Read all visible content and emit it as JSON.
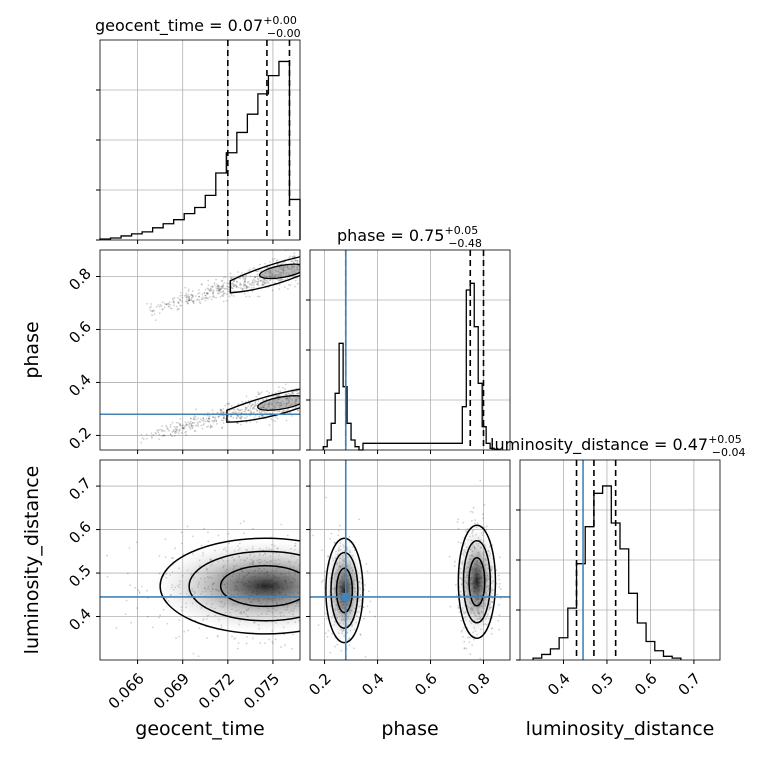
{
  "chart_data": {
    "type": "corner",
    "parameters": [
      "geocent_time",
      "phase",
      "luminosity_distance"
    ],
    "axis_labels": {
      "geocent_time": "geocent_time",
      "phase": "phase",
      "luminosity_distance": "luminosity_distance"
    },
    "ranges": {
      "geocent_time": [
        0.0635,
        0.0768
      ],
      "phase": [
        0.145,
        0.9
      ],
      "luminosity_distance": [
        0.3,
        0.76
      ]
    },
    "ticks": {
      "geocent_time": [
        0.066,
        0.069,
        0.072,
        0.075
      ],
      "phase": [
        0.2,
        0.4,
        0.6,
        0.8
      ],
      "luminosity_distance": [
        0.4,
        0.5,
        0.6,
        0.7
      ]
    },
    "tick_labels": {
      "geocent_time": [
        "0.066",
        "0.069",
        "0.072",
        "0.075"
      ],
      "phase": [
        "0.2",
        "0.4",
        "0.6",
        "0.8"
      ],
      "luminosity_distance": [
        "0.4",
        "0.5",
        "0.6",
        "0.7"
      ]
    },
    "injection": {
      "phase": 0.28,
      "luminosity_distance": 0.445
    },
    "titles": [
      {
        "param": "geocent_time",
        "prefix": "geocent_time = 0.07",
        "sup": "+0.00",
        "sub": "−0.00"
      },
      {
        "param": "phase",
        "prefix": "phase = 0.75",
        "sup": "+0.05",
        "sub": "−0.48"
      },
      {
        "param": "luminosity_distance",
        "prefix": "luminosity_distance = 0.47",
        "sup": "+0.05",
        "sub": "−0.04"
      }
    ],
    "quantiles": {
      "geocent_time": [
        0.072,
        0.0746,
        0.0761
      ],
      "phase": [
        0.75,
        0.28,
        0.8
      ],
      "luminosity_distance": [
        0.43,
        0.47,
        0.52
      ]
    },
    "histograms": {
      "geocent_time": {
        "edges": [
          0.0635,
          0.0642,
          0.0649,
          0.0656,
          0.0663,
          0.067,
          0.0677,
          0.0684,
          0.0691,
          0.0698,
          0.0705,
          0.0712,
          0.0719,
          0.0726,
          0.0733,
          0.074,
          0.0747,
          0.0754,
          0.0761,
          0.0768
        ],
        "counts": [
          0.005,
          0.01,
          0.02,
          0.03,
          0.04,
          0.06,
          0.08,
          0.1,
          0.13,
          0.16,
          0.22,
          0.33,
          0.43,
          0.53,
          0.62,
          0.72,
          0.81,
          0.88,
          0.2
        ]
      },
      "phase": {
        "edges": [
          0.195,
          0.21,
          0.225,
          0.24,
          0.255,
          0.27,
          0.285,
          0.3,
          0.315,
          0.33,
          0.345,
          0.72,
          0.735,
          0.75,
          0.765,
          0.78,
          0.795,
          0.81,
          0.825,
          0.84,
          0.855
        ],
        "counts": [
          0.02,
          0.06,
          0.16,
          0.34,
          0.64,
          0.38,
          0.16,
          0.06,
          0.02,
          0.0,
          0.04,
          0.26,
          0.96,
          1.0,
          0.74,
          0.4,
          0.14,
          0.04,
          0.01,
          0.005
        ],
        "ymax": 1.2
      },
      "luminosity_distance": {
        "edges": [
          0.33,
          0.35,
          0.37,
          0.39,
          0.41,
          0.43,
          0.45,
          0.47,
          0.49,
          0.51,
          0.53,
          0.55,
          0.57,
          0.59,
          0.61,
          0.63,
          0.65,
          0.67
        ],
        "counts": [
          0.01,
          0.03,
          0.06,
          0.12,
          0.28,
          0.52,
          0.72,
          0.9,
          0.94,
          0.74,
          0.6,
          0.36,
          0.2,
          0.1,
          0.05,
          0.02,
          0.01
        ],
        "ymax": 1.08
      }
    },
    "point_clouds": [
      {
        "x": "geocent_time",
        "y": "phase",
        "strips": [
          {
            "x0": 0.0665,
            "x1": 0.0768,
            "y0": 0.665,
            "y1": 0.84,
            "sx": 0.0,
            "sy": 0.018,
            "n": 600
          },
          {
            "x0": 0.066,
            "x1": 0.0768,
            "y0": 0.19,
            "y1": 0.34,
            "sx": 0.0,
            "sy": 0.018,
            "n": 600
          }
        ]
      },
      {
        "x": "geocent_time",
        "y": "luminosity_distance",
        "blob": {
          "cx": 0.0745,
          "cy": 0.47,
          "sx": 0.0035,
          "sy": 0.055,
          "n": 900
        }
      },
      {
        "x": "phase",
        "y": "luminosity_distance",
        "blobs": [
          {
            "cx": 0.275,
            "cy": 0.46,
            "sx": 0.035,
            "sy": 0.06,
            "n": 450
          },
          {
            "cx": 0.775,
            "cy": 0.48,
            "sx": 0.035,
            "sy": 0.065,
            "n": 600
          }
        ]
      }
    ]
  }
}
